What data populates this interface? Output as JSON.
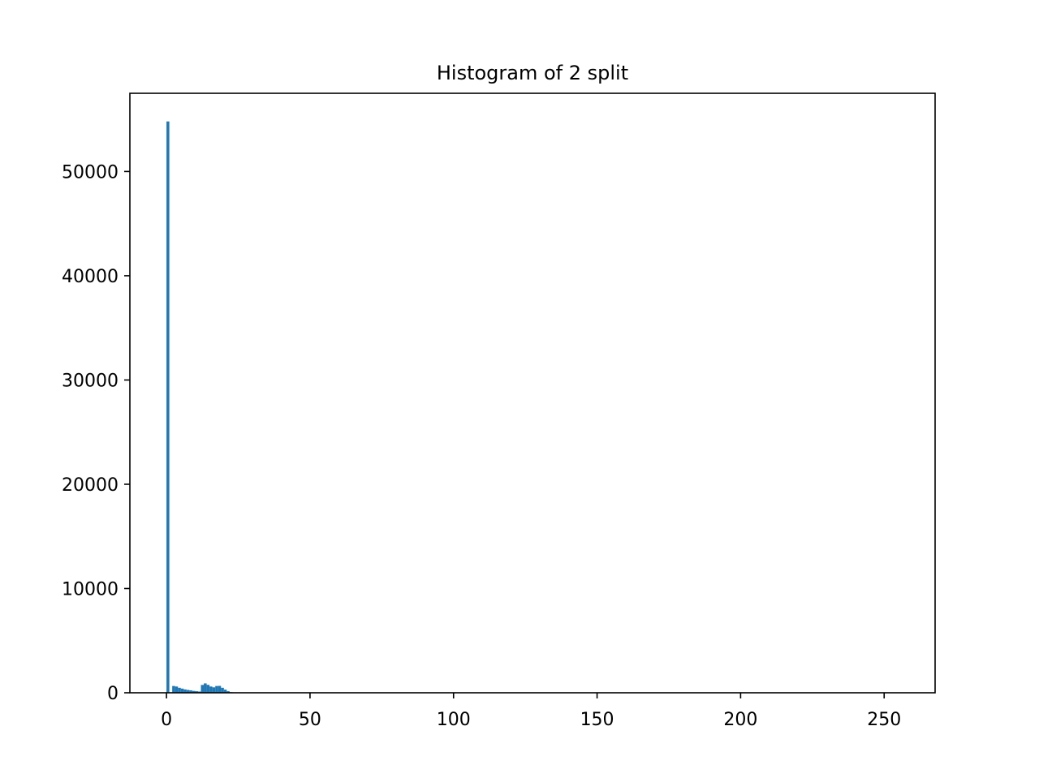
{
  "chart_data": {
    "type": "bar",
    "title": "Histogram of 2 split",
    "xlabel": "",
    "ylabel": "",
    "xlim": [
      -12.75,
      267.75
    ],
    "ylim": [
      0,
      57500
    ],
    "x_ticks": [
      0,
      50,
      100,
      150,
      200,
      250
    ],
    "y_ticks": [
      0,
      10000,
      20000,
      30000,
      40000,
      50000
    ],
    "grid": false,
    "legend": "none",
    "bar_color": "#1f77b4",
    "bin_width": 1,
    "bins": [
      {
        "x": 0,
        "value": 54800
      },
      {
        "x": 1,
        "value": 0
      },
      {
        "x": 2,
        "value": 650
      },
      {
        "x": 3,
        "value": 600
      },
      {
        "x": 4,
        "value": 480
      },
      {
        "x": 5,
        "value": 400
      },
      {
        "x": 6,
        "value": 320
      },
      {
        "x": 7,
        "value": 270
      },
      {
        "x": 8,
        "value": 230
      },
      {
        "x": 9,
        "value": 180
      },
      {
        "x": 10,
        "value": 150
      },
      {
        "x": 11,
        "value": 120
      },
      {
        "x": 12,
        "value": 750
      },
      {
        "x": 13,
        "value": 900
      },
      {
        "x": 14,
        "value": 760
      },
      {
        "x": 15,
        "value": 600
      },
      {
        "x": 16,
        "value": 520
      },
      {
        "x": 17,
        "value": 650
      },
      {
        "x": 18,
        "value": 660
      },
      {
        "x": 19,
        "value": 480
      },
      {
        "x": 20,
        "value": 300
      },
      {
        "x": 21,
        "value": 150
      },
      {
        "x": 22,
        "value": 60
      },
      {
        "x": 23,
        "value": 25
      },
      {
        "x": 24,
        "value": 10
      }
    ]
  }
}
